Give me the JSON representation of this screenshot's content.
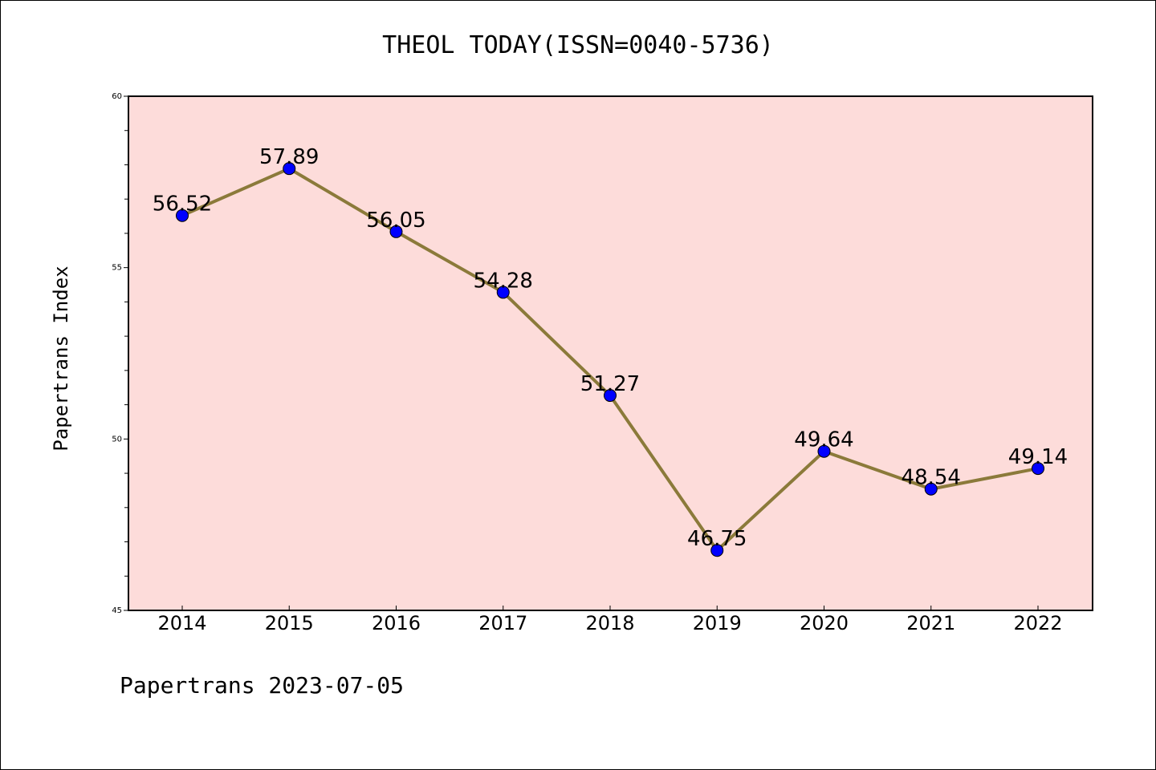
{
  "chart_data": {
    "type": "line",
    "title": "THEOL TODAY(ISSN=0040-5736)",
    "xlabel": "",
    "ylabel": "Papertrans Index",
    "categories": [
      "2014",
      "2015",
      "2016",
      "2017",
      "2018",
      "2019",
      "2020",
      "2021",
      "2022"
    ],
    "values": [
      56.52,
      57.89,
      56.05,
      54.28,
      51.27,
      46.75,
      49.64,
      48.54,
      49.14
    ],
    "data_labels": [
      "56.52",
      "57.89",
      "56.05",
      "54.28",
      "51.27",
      "46.75",
      "49.64",
      "48.54",
      "49.14"
    ],
    "ylim": [
      45,
      60
    ],
    "y_ticks": [
      45,
      50,
      55,
      60
    ],
    "y_tick_labels": [
      "45",
      "50",
      "55",
      "60"
    ],
    "y_minor_step": 1,
    "grid": false,
    "legend": "none",
    "colors": {
      "plot_background": "#fddcda",
      "line": "#8b7a3a",
      "marker": "#0000ff"
    }
  },
  "footer": {
    "text": "Papertrans 2023-07-05"
  }
}
